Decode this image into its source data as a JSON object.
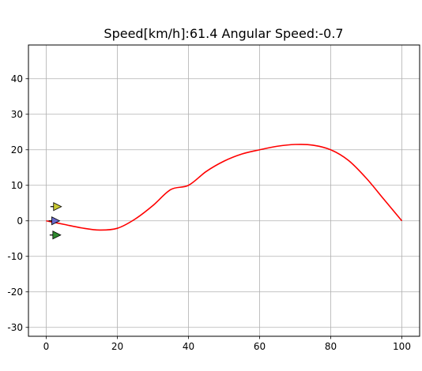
{
  "chart_data": {
    "type": "line",
    "title": "Speed[km/h]:61.4  Angular Speed:-0.7",
    "xlabel": "",
    "ylabel": "",
    "xlim": [
      -5,
      105
    ],
    "ylim": [
      -32.5,
      49.5
    ],
    "xticks": [
      0,
      20,
      40,
      60,
      80,
      100
    ],
    "yticks": [
      -30,
      -20,
      -10,
      0,
      10,
      20,
      30,
      40
    ],
    "grid": true,
    "series": [
      {
        "color": "#ff0000",
        "x": [
          0,
          5,
          10,
          15,
          20,
          25,
          30,
          35,
          40,
          45,
          50,
          55,
          60,
          65,
          70,
          75,
          80,
          85,
          90,
          95,
          100
        ],
        "y": [
          0,
          -1.0,
          -2.0,
          -2.6,
          -2.1,
          0.5,
          4.3,
          8.8,
          10.0,
          13.9,
          16.8,
          18.8,
          20.0,
          21.0,
          21.5,
          21.3,
          20.0,
          17.0,
          12.0,
          6.0,
          0
        ]
      }
    ],
    "markers": [
      {
        "x": 2.5,
        "y": 4.0,
        "color": "#c8c832",
        "direction": "right"
      },
      {
        "x": 2.0,
        "y": 0.0,
        "color": "#6a6acc",
        "direction": "right"
      },
      {
        "x": 2.3,
        "y": -4.0,
        "color": "#2f8a2f",
        "direction": "right"
      }
    ]
  }
}
